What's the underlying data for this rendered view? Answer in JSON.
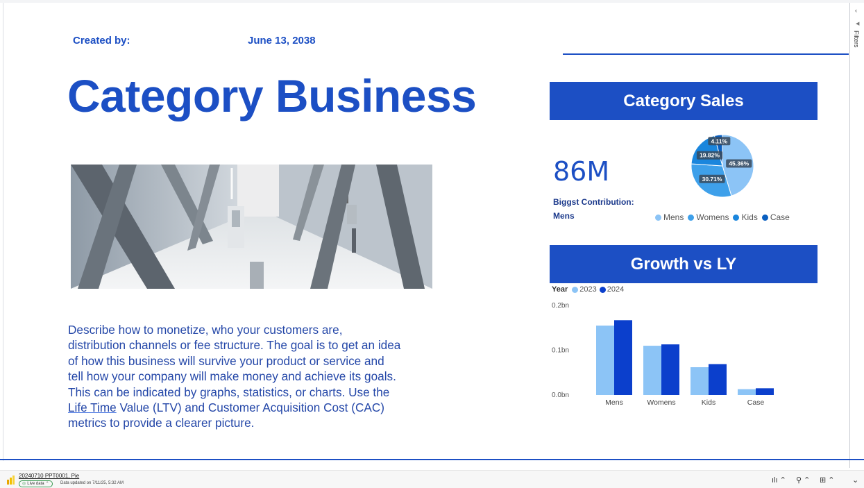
{
  "report": {
    "created_label": "Created by:",
    "created_date": "June 13, 2038",
    "title": "Category Business",
    "description_parts": [
      "Describe how to monetize, who your customers are, distribution channels or fee structure. The goal is to get an idea of how this business will survive your product or service and tell how your company will make money and achieve its goals. This can be indicated by graphs, statistics, or charts. Use the ",
      "Life Time",
      " Value (LTV) and Customer Acquisition Cost (CAC) metrics to provide a clearer picture."
    ]
  },
  "category_sales": {
    "header": "Category Sales",
    "kpi_value": "86M",
    "kpi_label": "Biggst Contribution:",
    "kpi_sub": "Mens"
  },
  "growth": {
    "header": "Growth vs LY"
  },
  "chart_data": [
    {
      "type": "pie",
      "labels": [
        "Mens",
        "Womens",
        "Kids",
        "Case"
      ],
      "values": [
        45.36,
        30.71,
        19.82,
        4.11
      ],
      "data_labels": [
        "45.36%",
        "30.71%",
        "19.82%",
        "4.11%"
      ],
      "colors": [
        "#8cc4f6",
        "#3ea0ea",
        "#1a86dd",
        "#0a5fc0"
      ],
      "legend": "bottom"
    },
    {
      "type": "bar",
      "categories": [
        "Mens",
        "Womens",
        "Kids",
        "Case"
      ],
      "legend_title": "Year",
      "series": [
        {
          "name": "2023",
          "values": [
            0.155,
            0.11,
            0.062,
            0.013
          ],
          "color": "#8cc4f6"
        },
        {
          "name": "2024",
          "values": [
            0.167,
            0.113,
            0.069,
            0.015
          ],
          "color": "#0b3fcc"
        }
      ],
      "ytick_labels": [
        "0.0bn",
        "0.1bn",
        "0.2bn"
      ],
      "yticks": [
        0,
        0.1,
        0.2
      ],
      "ylim": [
        0,
        0.2
      ],
      "legend": "top-left"
    }
  ],
  "filters_pane": {
    "label": "Filters",
    "collapse_icon": "chevron-left-icon"
  },
  "status_bar": {
    "file_name": "20240710 PPT0001, Pie",
    "live_label": "Live data",
    "updated_text": "Data updated on 7/11/25, 5:32 AM"
  }
}
